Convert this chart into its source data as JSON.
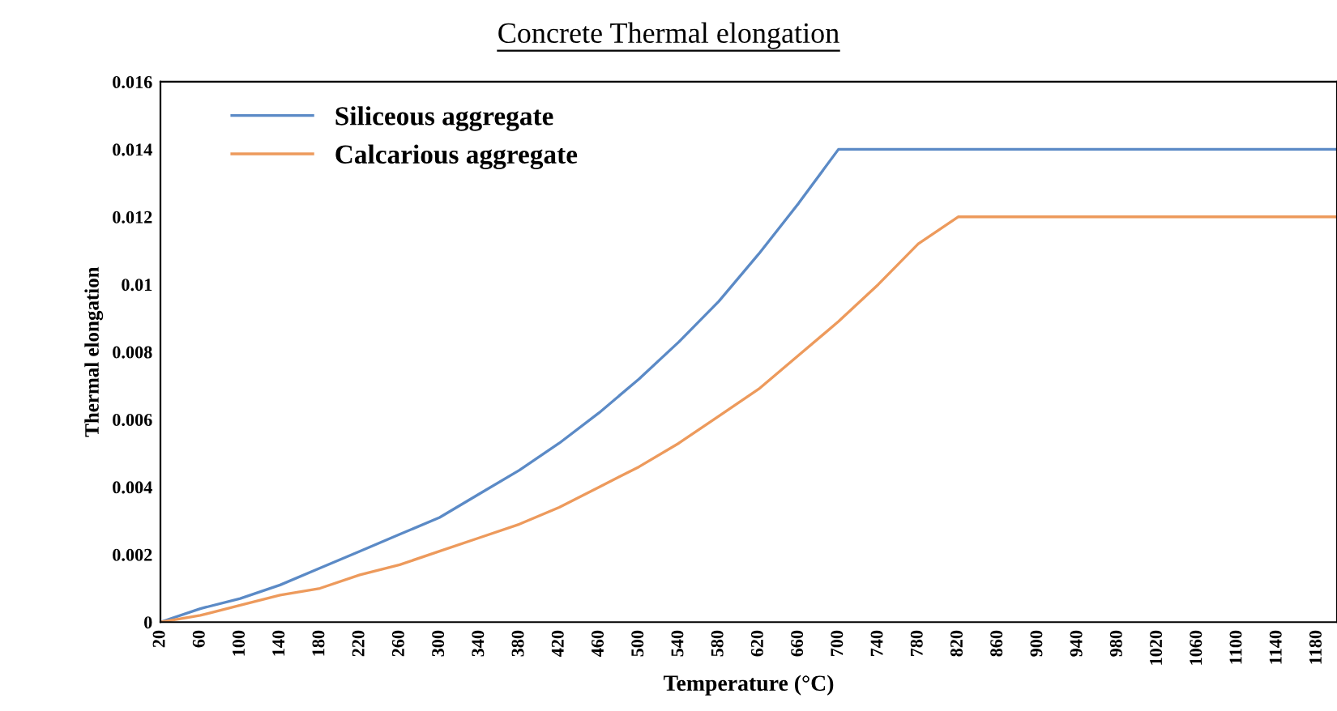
{
  "chart_data": {
    "type": "line",
    "title": "Concrete Thermal elongation",
    "xlabel": "Temperature (°C)",
    "ylabel": "Thermal elongation",
    "x": [
      20,
      60,
      100,
      140,
      180,
      220,
      260,
      300,
      340,
      380,
      420,
      460,
      500,
      540,
      580,
      620,
      660,
      700,
      740,
      780,
      820,
      860,
      900,
      940,
      980,
      1020,
      1060,
      1100,
      1140,
      1180,
      1200
    ],
    "series": [
      {
        "name": "Siliceous aggregate",
        "color": "#5b8ac6",
        "values": [
          0.0,
          0.0004,
          0.0007,
          0.0011,
          0.0016,
          0.0021,
          0.0026,
          0.0031,
          0.0038,
          0.0045,
          0.0053,
          0.0062,
          0.0072,
          0.0083,
          0.0095,
          0.0109,
          0.0124,
          0.014,
          0.014,
          0.014,
          0.014,
          0.014,
          0.014,
          0.014,
          0.014,
          0.014,
          0.014,
          0.014,
          0.014,
          0.014,
          0.014
        ]
      },
      {
        "name": "Calcarious aggregate",
        "color": "#ed9a5c",
        "values": [
          0.0,
          0.0002,
          0.0005,
          0.0008,
          0.001,
          0.0014,
          0.0017,
          0.0021,
          0.0025,
          0.0029,
          0.0034,
          0.004,
          0.0046,
          0.0053,
          0.0061,
          0.0069,
          0.0079,
          0.0089,
          0.01,
          0.0112,
          0.012,
          0.012,
          0.012,
          0.012,
          0.012,
          0.012,
          0.012,
          0.012,
          0.012,
          0.012,
          0.012
        ]
      }
    ],
    "xlim": [
      20,
      1200
    ],
    "xticks": [
      20,
      60,
      100,
      140,
      180,
      220,
      260,
      300,
      340,
      380,
      420,
      460,
      500,
      540,
      580,
      620,
      660,
      700,
      740,
      780,
      820,
      860,
      900,
      940,
      980,
      1020,
      1060,
      1100,
      1140,
      1180
    ],
    "ylim": [
      0,
      0.016
    ],
    "yticks": [
      {
        "value": 0,
        "label": "0"
      },
      0.002,
      0.004,
      0.006,
      0.008,
      0.01,
      0.012,
      0.014,
      0.016
    ],
    "grid": false,
    "legend": "top left",
    "marker": "none",
    "line_style": "solid"
  }
}
